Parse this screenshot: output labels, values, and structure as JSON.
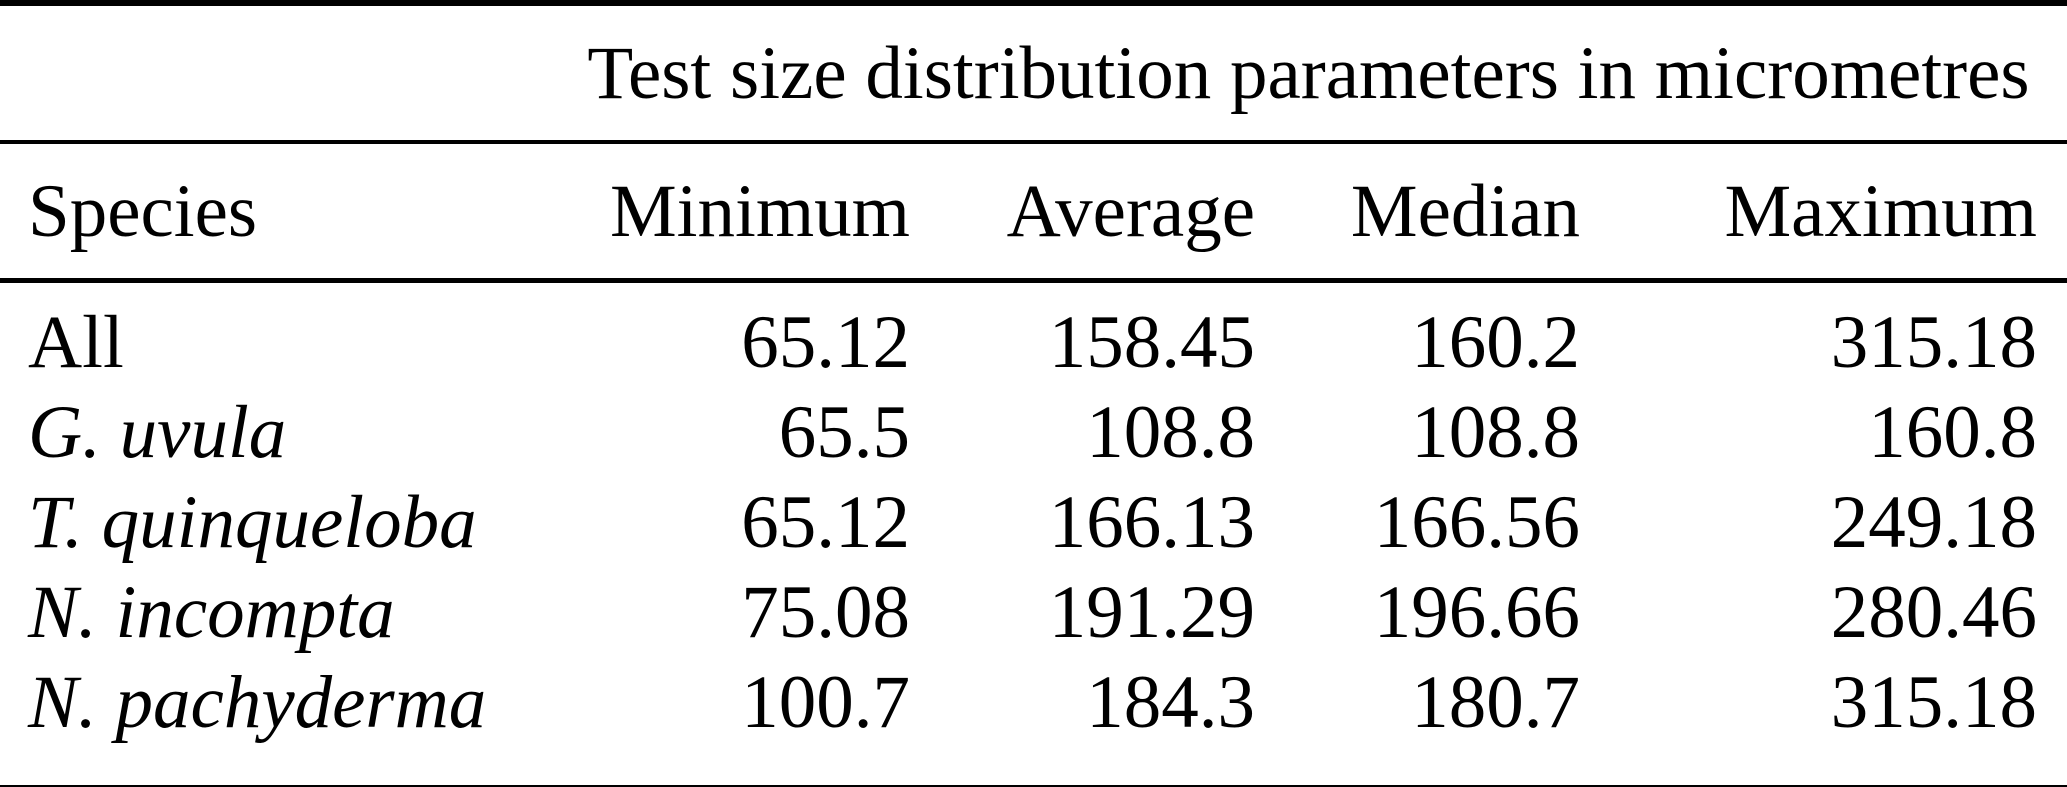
{
  "table": {
    "title": "Test size distribution parameters in micrometres",
    "header": {
      "species": "Species",
      "minimum": "Minimum",
      "average": "Average",
      "median": "Median",
      "maximum": "Maximum"
    },
    "rows": [
      {
        "species": "All",
        "minimum": "65.12",
        "average": "158.45",
        "median": "160.2",
        "maximum": "315.18"
      },
      {
        "species": "G. uvula",
        "minimum": "65.5",
        "average": "108.8",
        "median": "108.8",
        "maximum": "160.8"
      },
      {
        "species": "T. quinqueloba",
        "minimum": "65.12",
        "average": "166.13",
        "median": "166.56",
        "maximum": "249.18"
      },
      {
        "species": "N. incompta",
        "minimum": "75.08",
        "average": "191.29",
        "median": "196.66",
        "maximum": "280.46"
      },
      {
        "species": "N. pachyderma",
        "minimum": "100.7",
        "average": "184.3",
        "median": "180.7",
        "maximum": "315.18"
      }
    ]
  }
}
